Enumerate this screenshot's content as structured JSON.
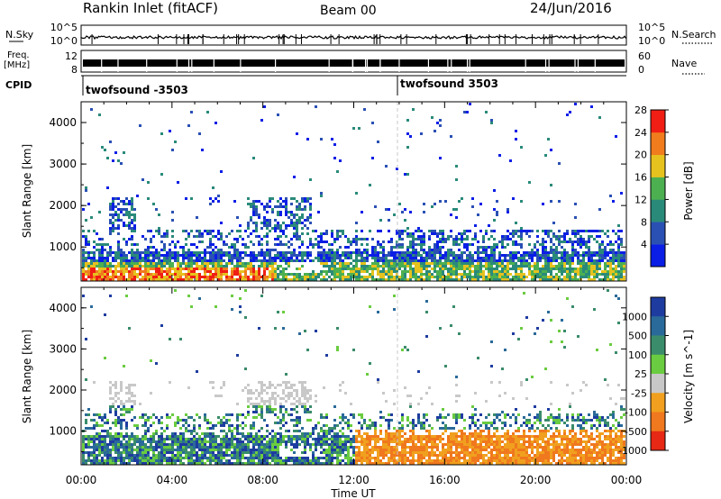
{
  "header": {
    "title": "Rankin Inlet (fitACF)",
    "beam": "Beam 00",
    "date": "24/Jun/2016"
  },
  "strip_sky": {
    "label": "N.Sky",
    "left_ticks": [
      "10^5",
      "10^0"
    ],
    "right_label": "N.Search",
    "right_ticks": [
      "10^5",
      "10^0"
    ]
  },
  "strip_freq": {
    "label_line1": "Freq.",
    "label_line2": "[MHz]",
    "left_ticks": [
      "12",
      "8"
    ],
    "right_label": "Nave",
    "right_ticks": [
      "60",
      "0"
    ]
  },
  "cpid": {
    "label": "CPID",
    "segments": [
      {
        "label": "twofsound -3503",
        "start_hour": 0.0
      },
      {
        "label": "twofsound 3503",
        "start_hour": 14.0
      }
    ]
  },
  "chart_data": [
    {
      "type": "heatmap",
      "name": "power",
      "ylabel": "Slant Range [km]",
      "ylim": [
        180,
        4500
      ],
      "yticks": [
        1000,
        2000,
        3000,
        4000
      ],
      "colorbar": {
        "label": "Power [dB]",
        "ticks": [
          "4",
          "8",
          "12",
          "16",
          "20",
          "24",
          "28"
        ],
        "colors": [
          "#0a1ee6",
          "#2a50b4",
          "#2a8a7a",
          "#4cb050",
          "#e6c21e",
          "#f07c1e",
          "#f01e14"
        ]
      }
    },
    {
      "type": "heatmap",
      "name": "velocity",
      "ylabel": "Slant Range [km]",
      "ylim": [
        180,
        4500
      ],
      "yticks": [
        1000,
        2000,
        3000,
        4000
      ],
      "xlabel": "Time UT",
      "xticks": [
        "00:00",
        "04:00",
        "08:00",
        "12:00",
        "16:00",
        "20:00",
        "00:00"
      ],
      "colorbar": {
        "label": "Velocity [m s^-1]",
        "ticks": [
          "1000",
          "500",
          "100",
          "25",
          "-25",
          "-100",
          "-500",
          "-1000"
        ],
        "colors": [
          "#1e3ca0",
          "#2a6a9a",
          "#3a8c6a",
          "#6acc40",
          "#c8c8c8",
          "#f0a01e",
          "#f0781e",
          "#e62814"
        ]
      }
    }
  ]
}
